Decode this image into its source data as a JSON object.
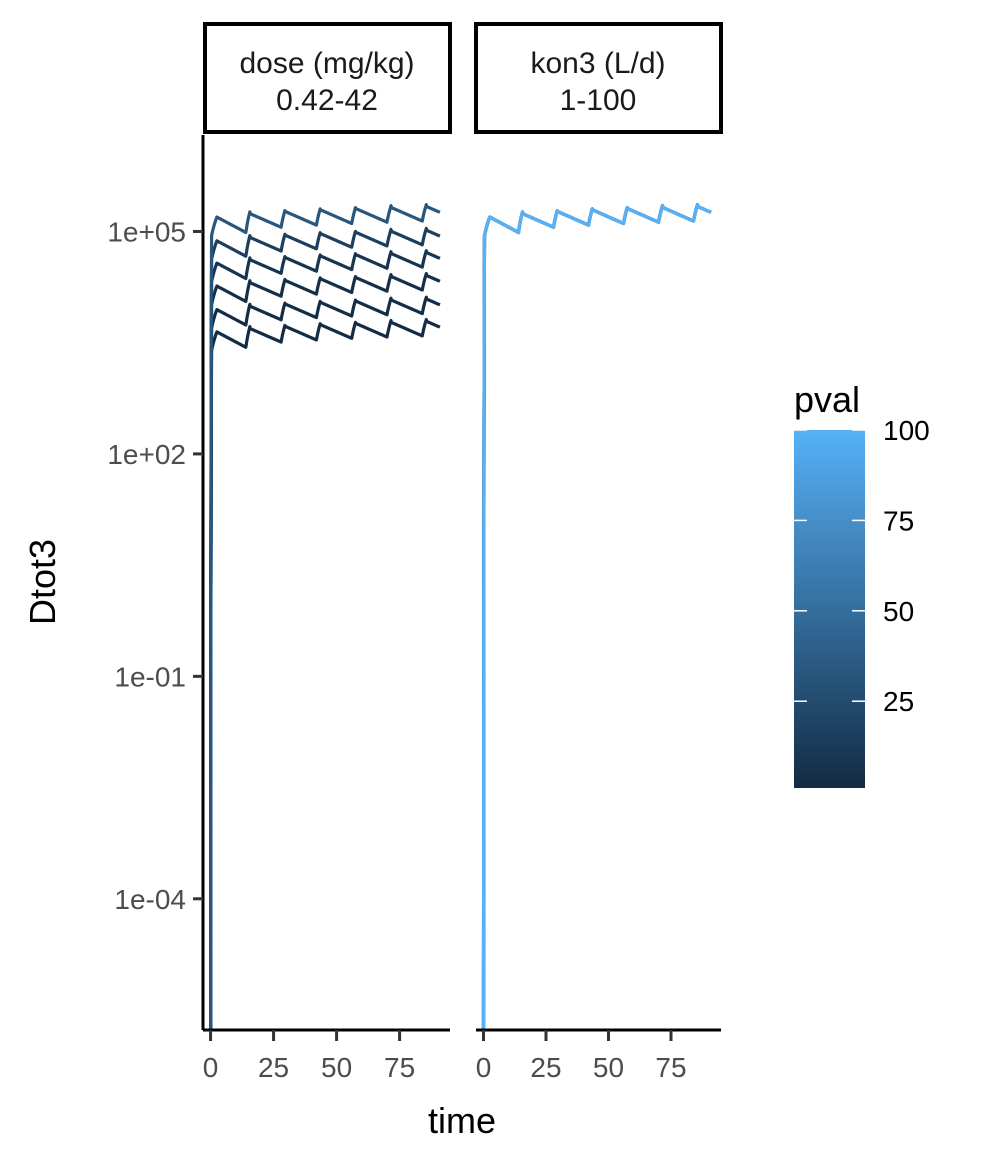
{
  "chart_data": {
    "type": "line",
    "facets": [
      {
        "label_line1": "dose (mg/kg)",
        "label_line2": "0.42-42",
        "varied_parameter": "dose",
        "series": [
          {
            "pval": 1,
            "plateau_y": 6500
          },
          {
            "pval": 2,
            "plateau_y": 13000
          },
          {
            "pval": 4,
            "plateau_y": 27000
          },
          {
            "pval": 8,
            "plateau_y": 55000
          },
          {
            "pval": 16,
            "plateau_y": 110000
          },
          {
            "pval": 33,
            "plateau_y": 230000
          }
        ]
      },
      {
        "label_line1": "kon3 (L/d)",
        "label_line2": "1-100",
        "varied_parameter": "kon3",
        "series": [
          {
            "pval": 1,
            "plateau_y": 230000
          },
          {
            "pval": 10,
            "plateau_y": 230000
          },
          {
            "pval": 50,
            "plateau_y": 230000
          },
          {
            "pval": 100,
            "plateau_y": 230000
          }
        ]
      }
    ],
    "x": {
      "label": "time",
      "ticks": [
        0,
        25,
        50,
        75
      ],
      "tick_labels": [
        "0",
        "25",
        "50",
        "75"
      ],
      "range": [
        -3,
        95
      ]
    },
    "y": {
      "label": "Dtot3",
      "scale": "log10",
      "ticks": [
        0.0001,
        0.1,
        100,
        100000
      ],
      "tick_labels": [
        "1e-04",
        "1e-01",
        "1e+02",
        "1e+05"
      ],
      "range": [
        1.7e-06,
        2000000
      ]
    },
    "curve": {
      "dose_interval": 14,
      "t_end": 91,
      "first_peak_fraction": 0.68,
      "trough_fraction": 0.62
    },
    "legend": {
      "title": "pval",
      "position": "right",
      "range": [
        1,
        100
      ],
      "ticks": [
        25,
        50,
        75,
        100
      ],
      "tick_labels": [
        "25",
        "50",
        "75",
        "100"
      ],
      "color_low": "#132B43",
      "color_high": "#56B1F7"
    }
  }
}
